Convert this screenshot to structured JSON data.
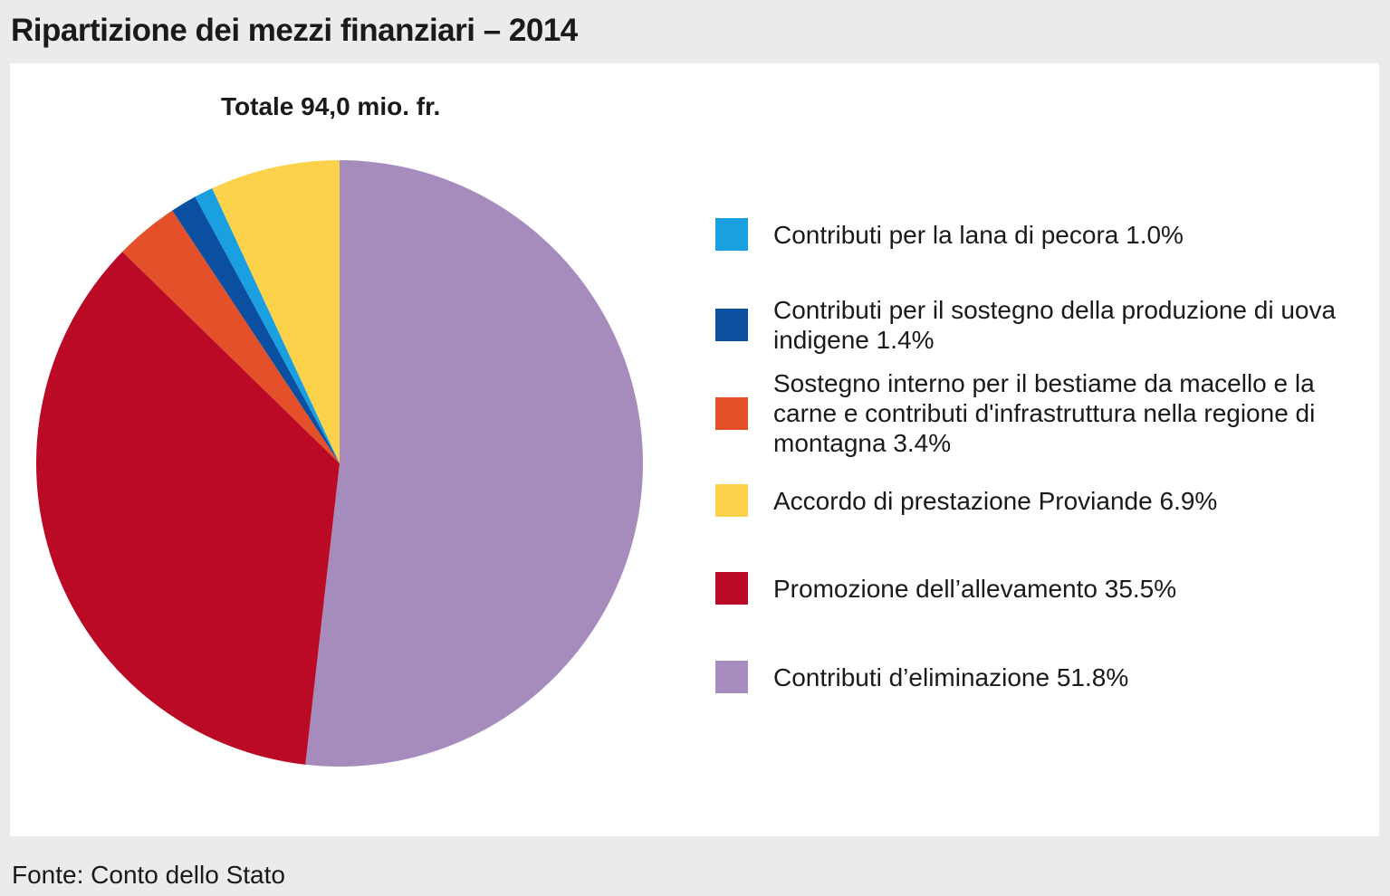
{
  "header": {
    "title": "Ripartizione dei mezzi finanziari – 2014"
  },
  "footer": {
    "source": "Fonte: Conto dello Stato"
  },
  "chart_data": {
    "type": "pie",
    "title": "Ripartizione dei mezzi finanziari – 2014",
    "subtitle": "Totale 94,0 mio. fr.",
    "unit": "%",
    "start": "12 o'clock",
    "direction": "clockwise",
    "slices": [
      {
        "name": "Contributi d’eliminazione",
        "value": 51.8,
        "color": "#a68bbd",
        "legend": "Contributi d’eliminazione 51.8%"
      },
      {
        "name": "Promozione dell’allevamento",
        "value": 35.5,
        "color": "#bb0a26",
        "legend": "Promozione dell’allevamento 35.5%"
      },
      {
        "name": "Sostegno interno per il bestiame da macello e la carne e contributi d'infrastruttura nella regione di montagna",
        "value": 3.4,
        "color": "#e4502a",
        "legend": "Sostegno interno per il bestiame da macello e la carne e contributi d'infrastruttura nella regione di montagna 3.4%"
      },
      {
        "name": "Contributi per il sostegno della produzione di uova indigene",
        "value": 1.4,
        "color": "#0b4fa0",
        "legend": "Contributi per il sostegno della produzione di uova indigene  1.4%"
      },
      {
        "name": "Contributi per la lana di pecora",
        "value": 1.0,
        "color": "#1a9fe0",
        "legend": "Contributi per la lana di pecora 1.0%"
      },
      {
        "name": "Accordo di prestazione Proviande",
        "value": 6.9,
        "color": "#fbd24a",
        "legend": "Accordo di prestazione Proviande 6.9%"
      }
    ],
    "legend_order": [
      4,
      3,
      2,
      5,
      1,
      0
    ]
  }
}
